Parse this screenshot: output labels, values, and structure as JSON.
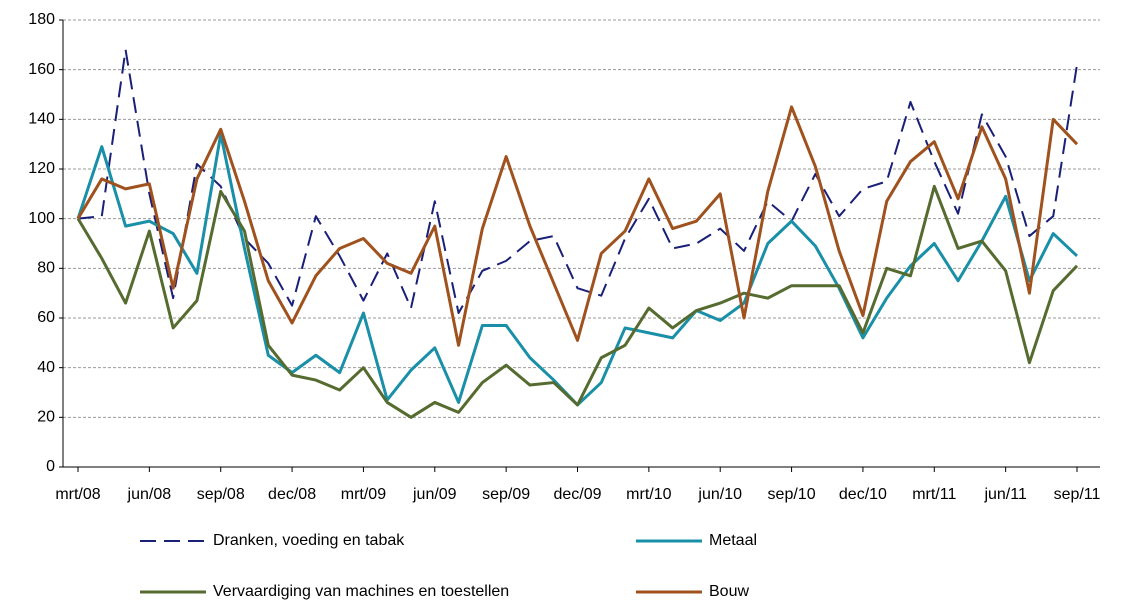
{
  "chart_data": {
    "type": "line",
    "categories": [
      "mrt/08",
      null,
      null,
      "jun/08",
      null,
      null,
      "sep/08",
      null,
      null,
      "dec/08",
      null,
      null,
      "mrt/09",
      null,
      null,
      "jun/09",
      null,
      null,
      "sep/09",
      null,
      null,
      "dec/09",
      null,
      null,
      "mrt/10",
      null,
      null,
      "jun/10",
      null,
      null,
      "sep/10",
      null,
      null,
      "dec/10",
      null,
      null,
      "mrt/11",
      null,
      null,
      "jun/11",
      null,
      null,
      "sep/11"
    ],
    "series": [
      {
        "name": "Dranken, voeding en tabak",
        "color": "#1a1f78",
        "dashed": true,
        "values": [
          100,
          101,
          168,
          110,
          68,
          122,
          113,
          92,
          82,
          65,
          101,
          85,
          67,
          86,
          64,
          107,
          62,
          79,
          83,
          91,
          93,
          72,
          69,
          92,
          108,
          88,
          90,
          96,
          87,
          107,
          99,
          118,
          101,
          112,
          115,
          147,
          123,
          102,
          142,
          125,
          93,
          101,
          162
        ]
      },
      {
        "name": "Metaal",
        "color": "#1a8fa8",
        "values": [
          100,
          129,
          97,
          99,
          94,
          78,
          134,
          88,
          45,
          38,
          45,
          38,
          62,
          27,
          39,
          48,
          26,
          57,
          57,
          44,
          35,
          25,
          34,
          56,
          54,
          52,
          63,
          59,
          66,
          90,
          99,
          89,
          72,
          52,
          68,
          81,
          90,
          75,
          91,
          109,
          75,
          94,
          85
        ]
      },
      {
        "name": "Vervaardiging van machines en toestellen",
        "color": "#556b2f",
        "values": [
          100,
          84,
          66,
          95,
          56,
          67,
          111,
          95,
          49,
          37,
          35,
          31,
          40,
          26,
          20,
          26,
          22,
          34,
          41,
          33,
          34,
          25,
          44,
          49,
          64,
          56,
          63,
          66,
          70,
          68,
          73,
          73,
          73,
          54,
          80,
          77,
          113,
          88,
          91,
          79,
          42,
          71,
          81
        ]
      },
      {
        "name": "Bouw",
        "color": "#a0521e",
        "values": [
          100,
          116,
          112,
          114,
          72,
          116,
          136,
          107,
          75,
          58,
          77,
          88,
          92,
          82,
          78,
          97,
          49,
          96,
          125,
          97,
          74,
          51,
          86,
          95,
          116,
          96,
          99,
          110,
          60,
          111,
          145,
          121,
          87,
          61,
          107,
          123,
          131,
          108,
          137,
          116,
          70,
          140,
          130
        ]
      }
    ],
    "ylim": [
      0,
      180
    ],
    "yticks": [
      0,
      20,
      40,
      60,
      80,
      100,
      120,
      140,
      160,
      180
    ],
    "grid": true
  }
}
